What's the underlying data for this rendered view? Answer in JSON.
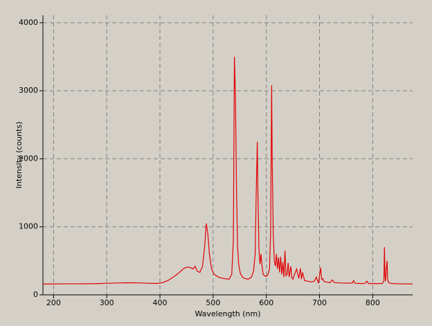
{
  "chart_data": {
    "type": "line",
    "x_label": "Wavelength (nm)",
    "y_label": "Intensity (counts)",
    "x": [
      180,
      200,
      220,
      240,
      260,
      280,
      300,
      320,
      340,
      360,
      380,
      395,
      405,
      415,
      425,
      435,
      445,
      452,
      458,
      462,
      466,
      470,
      475,
      480,
      484,
      487,
      490,
      493,
      497,
      502,
      510,
      520,
      530,
      535,
      538,
      540,
      542,
      544,
      546,
      548,
      551,
      555,
      560,
      566,
      572,
      576,
      579,
      581,
      583,
      584,
      586,
      588,
      590,
      592,
      594,
      597,
      600,
      603,
      606,
      608,
      610,
      611,
      613,
      615,
      617,
      619,
      621,
      623,
      625,
      627,
      629,
      631,
      633,
      635,
      637,
      639,
      641,
      643,
      646,
      648,
      650,
      653,
      657,
      661,
      664,
      666,
      668,
      672,
      678,
      685,
      690,
      694,
      698,
      702,
      704,
      706,
      708,
      712,
      720,
      724,
      728,
      740,
      755,
      762,
      764,
      767,
      775,
      785,
      789,
      792,
      800,
      810,
      818,
      821,
      822,
      823,
      824,
      826,
      827,
      828,
      830,
      833,
      840,
      855,
      875
    ],
    "values": [
      160,
      160,
      162,
      162,
      163,
      165,
      170,
      175,
      178,
      176,
      170,
      168,
      180,
      210,
      260,
      320,
      390,
      410,
      400,
      380,
      420,
      350,
      330,
      420,
      700,
      1050,
      900,
      600,
      380,
      300,
      260,
      240,
      230,
      300,
      800,
      3500,
      2900,
      1500,
      700,
      450,
      320,
      260,
      240,
      230,
      260,
      350,
      600,
      1500,
      2250,
      1600,
      700,
      450,
      600,
      420,
      300,
      280,
      270,
      300,
      380,
      900,
      3080,
      2000,
      900,
      500,
      420,
      600,
      380,
      550,
      330,
      560,
      300,
      480,
      260,
      650,
      280,
      300,
      470,
      260,
      420,
      250,
      230,
      300,
      380,
      240,
      390,
      230,
      330,
      210,
      200,
      190,
      200,
      260,
      170,
      400,
      230,
      240,
      200,
      190,
      180,
      220,
      180,
      175,
      172,
      175,
      210,
      170,
      168,
      166,
      200,
      168,
      165,
      165,
      168,
      200,
      700,
      300,
      200,
      420,
      500,
      220,
      180,
      170,
      165,
      162,
      160
    ],
    "color": "#e00000",
    "xlim": [
      180,
      875
    ],
    "xticks": [
      200,
      300,
      400,
      500,
      600,
      700,
      800
    ],
    "ylim": [
      0,
      4110
    ],
    "yticks": [
      0,
      1000,
      2000,
      3000,
      4000
    ],
    "grid": true
  }
}
